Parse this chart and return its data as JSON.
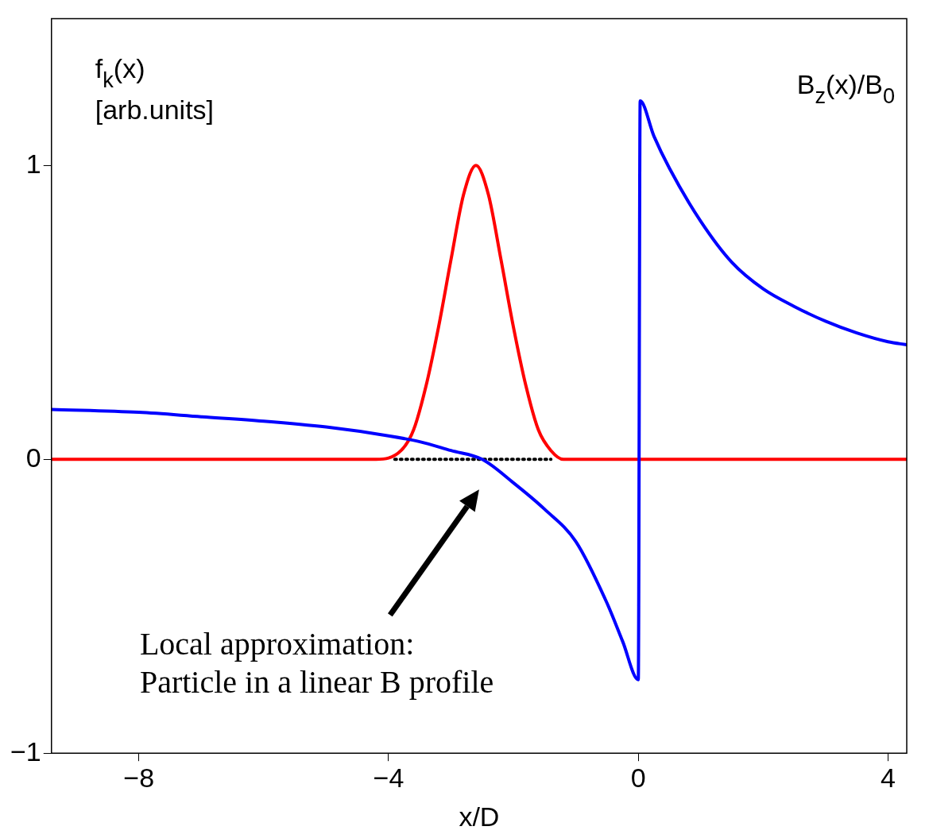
{
  "chart_data": {
    "type": "line",
    "xlabel": "x/D",
    "ylabel": "f$_{k}$(x)\n[arb.units]",
    "y2label": "B$_{z}$(x)/B$_{0}$",
    "xlim": [
      -9.4,
      4.3
    ],
    "ylim": [
      -1,
      1.5
    ],
    "xticks": [
      -8,
      -4,
      0,
      4
    ],
    "yticks": [
      -1,
      0,
      1
    ],
    "grid": false,
    "legend": false,
    "marker": "none",
    "series": [
      {
        "color": "#0000ff",
        "line_style": "solid",
        "x": [
          -9.4,
          -8,
          -7,
          -6,
          -5,
          -4,
          -3.5,
          -3,
          -2.5,
          -2,
          -1.5,
          -1,
          -0.5,
          -0.25,
          0,
          0.03,
          0.25,
          0.5,
          1,
          1.5,
          2,
          2.5,
          3,
          3.5,
          4,
          4.3
        ],
        "values": [
          0.17,
          0.16,
          0.145,
          0.13,
          0.11,
          0.08,
          0.06,
          0.03,
          0.0,
          -0.08,
          -0.17,
          -0.28,
          -0.49,
          -0.62,
          -0.75,
          1.22,
          1.1,
          0.99,
          0.81,
          0.67,
          0.58,
          0.52,
          0.47,
          0.43,
          0.4,
          0.39
        ]
      },
      {
        "color": "#000000",
        "line_style": "dotted",
        "x": [
          -3.9,
          -1.4
        ],
        "values": [
          0,
          0
        ]
      },
      {
        "color": "#ff0000",
        "line_style": "solid",
        "x": [
          -9.4,
          -4.2,
          -3.8,
          -3.6,
          -3.4,
          -3.2,
          -3.0,
          -2.8,
          -2.6,
          -2.4,
          -2.2,
          -2.0,
          -1.8,
          -1.6,
          -1.4,
          -1.2,
          4.3
        ],
        "values": [
          0,
          0,
          0.03,
          0.1,
          0.25,
          0.45,
          0.68,
          0.9,
          1,
          0.9,
          0.68,
          0.45,
          0.25,
          0.1,
          0.03,
          0,
          0
        ]
      }
    ],
    "annotations": [
      "Local approximation:\nParticle in a linear B profile"
    ]
  }
}
